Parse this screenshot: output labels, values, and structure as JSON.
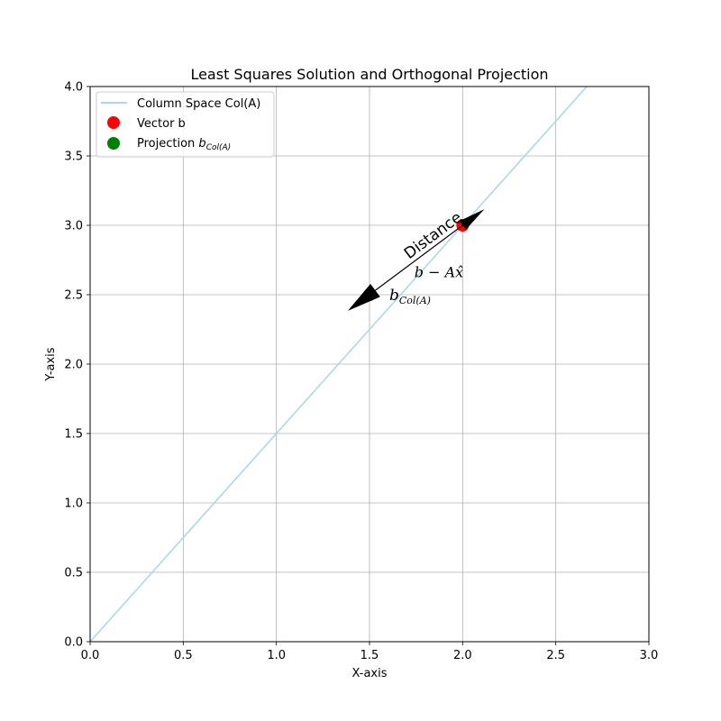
{
  "chart_data": {
    "type": "line",
    "title": "Least Squares Solution and Orthogonal Projection",
    "xlabel": "X-axis",
    "ylabel": "Y-axis",
    "xlim": [
      0,
      3.0
    ],
    "ylim": [
      0,
      4.0
    ],
    "xticks": [
      "0.0",
      "0.5",
      "1.0",
      "1.5",
      "2.0",
      "2.5",
      "3.0"
    ],
    "yticks": [
      "0.0",
      "0.5",
      "1.0",
      "1.5",
      "2.0",
      "2.5",
      "3.0",
      "3.5",
      "4.0"
    ],
    "grid": true,
    "legend_position": "top-left",
    "series": [
      {
        "name": "Column Space Col(A)",
        "kind": "line",
        "color": "#add8e6",
        "x": [
          0,
          3.0
        ],
        "y": [
          0,
          4.5
        ]
      },
      {
        "name": "Vector b",
        "kind": "point",
        "color": "#ff0000",
        "x": [
          2.0
        ],
        "y": [
          3.0
        ]
      },
      {
        "name": "Projection b_Col(A)",
        "kind": "point",
        "color": "#008000",
        "x": [
          1.5
        ],
        "y": [
          2.5
        ]
      }
    ],
    "arrow": {
      "from": [
        2.0,
        3.0
      ],
      "to": [
        1.5,
        2.5
      ],
      "color": "#000000"
    },
    "annotations": {
      "projection_label": {
        "main": "b",
        "sub": "Col(A)",
        "color": "#008000",
        "x": 1.5,
        "y": 2.5
      },
      "distance_label": {
        "text": "Distance",
        "x": 1.78,
        "y": 2.78
      },
      "residual_label": {
        "text": "b − Ax̂",
        "x": 1.77,
        "y": 2.77
      }
    },
    "legend_entries": {
      "line": "Column Space Col(A)",
      "b": "Vector b",
      "proj_prefix": "Projection ",
      "proj_main": "b",
      "proj_sub": "Col(A)"
    }
  }
}
